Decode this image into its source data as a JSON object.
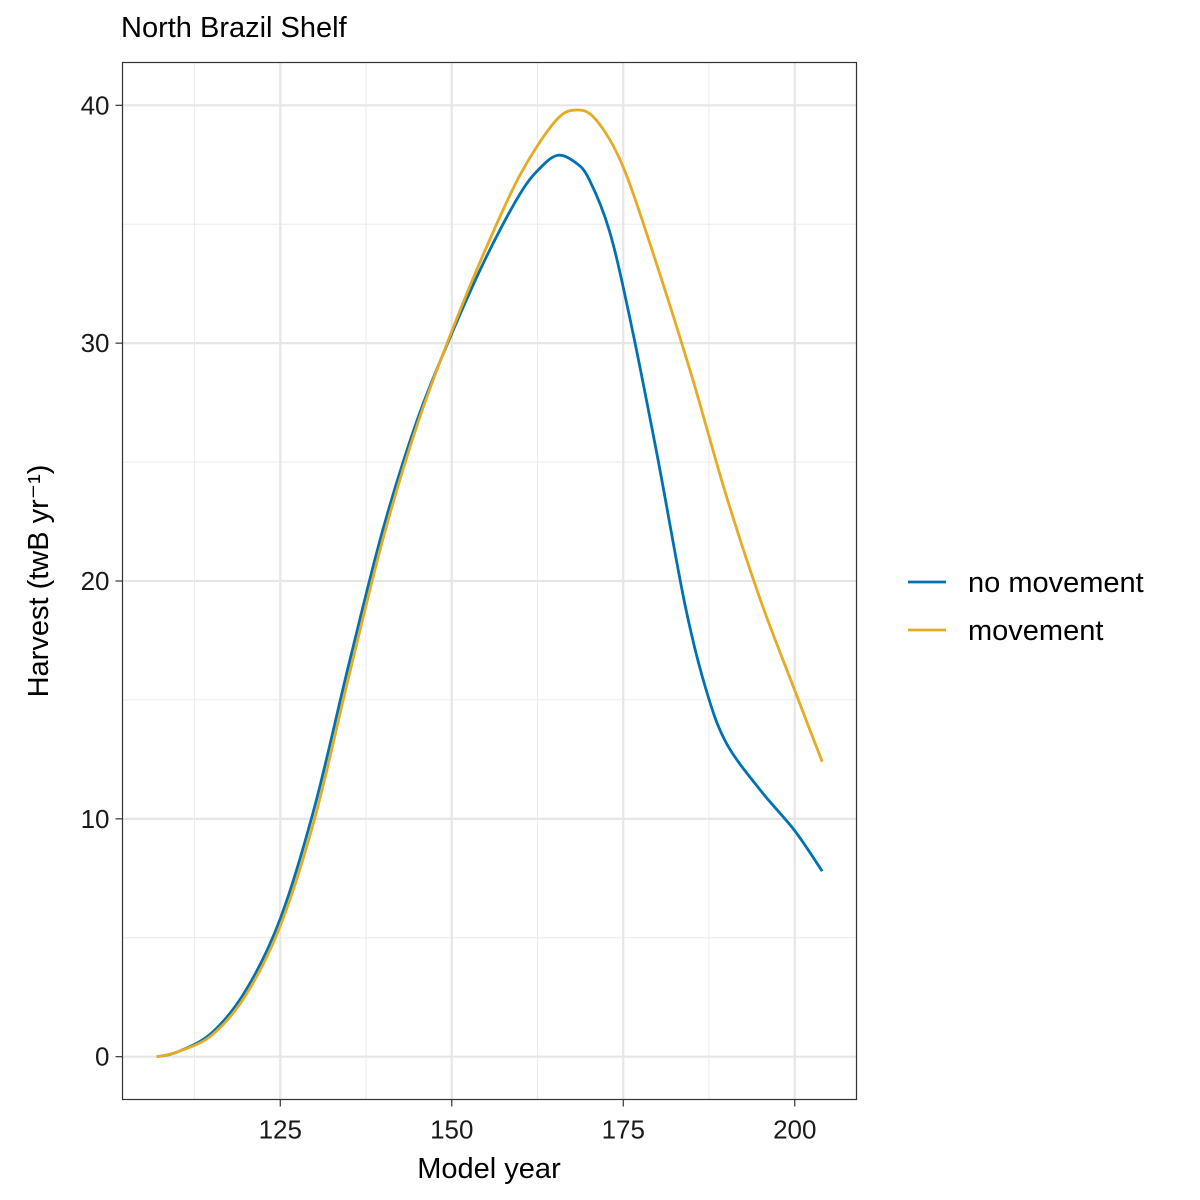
{
  "chart_data": {
    "type": "line",
    "title": "North Brazil Shelf",
    "xlabel": "Model year",
    "ylabel": "Harvest (twB yr⁻¹)",
    "xlim": [
      102,
      209
    ],
    "ylim": [
      -1.8,
      41.8
    ],
    "x_ticks": [
      125,
      150,
      175,
      200
    ],
    "y_ticks": [
      0,
      10,
      20,
      30,
      40
    ],
    "grid": true,
    "legend_position": "right",
    "series": [
      {
        "name": "no movement",
        "color": "#0072B2",
        "points": [
          [
            107,
            0.0
          ],
          [
            110,
            0.2
          ],
          [
            115,
            1.0
          ],
          [
            120,
            2.8
          ],
          [
            125,
            5.8
          ],
          [
            130,
            10.5
          ],
          [
            135,
            16.5
          ],
          [
            140,
            22.2
          ],
          [
            145,
            26.8
          ],
          [
            150,
            30.4
          ],
          [
            155,
            33.6
          ],
          [
            160,
            36.3
          ],
          [
            163,
            37.4
          ],
          [
            165.5,
            37.9
          ],
          [
            168,
            37.6
          ],
          [
            170,
            36.9
          ],
          [
            173,
            34.7
          ],
          [
            176,
            31.0
          ],
          [
            180,
            25.2
          ],
          [
            184,
            19.0
          ],
          [
            187,
            15.5
          ],
          [
            190,
            13.2
          ],
          [
            195,
            11.2
          ],
          [
            200,
            9.5
          ],
          [
            204,
            7.8
          ]
        ]
      },
      {
        "name": "movement",
        "color": "#E6AB22",
        "points": [
          [
            107,
            0.0
          ],
          [
            110,
            0.2
          ],
          [
            115,
            0.9
          ],
          [
            120,
            2.6
          ],
          [
            125,
            5.5
          ],
          [
            130,
            10.0
          ],
          [
            135,
            16.0
          ],
          [
            140,
            21.8
          ],
          [
            145,
            26.6
          ],
          [
            150,
            30.5
          ],
          [
            155,
            34.0
          ],
          [
            160,
            37.1
          ],
          [
            165,
            39.3
          ],
          [
            168,
            39.8
          ],
          [
            171,
            39.4
          ],
          [
            175,
            37.4
          ],
          [
            180,
            33.2
          ],
          [
            185,
            28.6
          ],
          [
            190,
            23.6
          ],
          [
            195,
            19.2
          ],
          [
            200,
            15.4
          ],
          [
            204,
            12.4
          ]
        ]
      }
    ]
  }
}
